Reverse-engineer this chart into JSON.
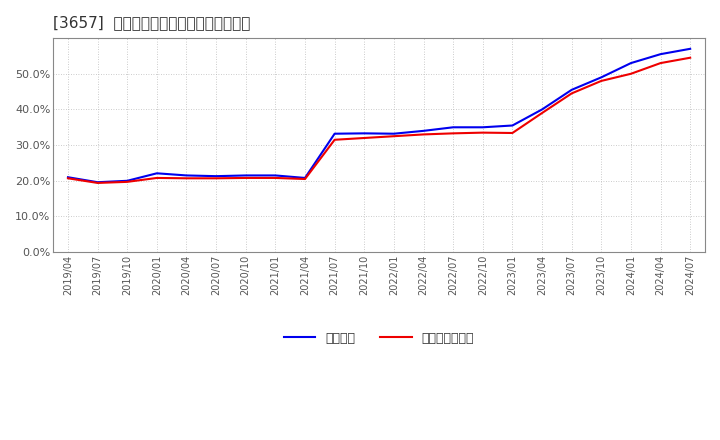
{
  "title": "[3657]  固定比率、固定長期適合率の推移",
  "line1_label": "固定比率",
  "line2_label": "固定長期適合率",
  "line1_color": "#0000ee",
  "line2_color": "#ee0000",
  "background_color": "#ffffff",
  "plot_bg_color": "#ffffff",
  "ylim": [
    0.0,
    0.6
  ],
  "yticks": [
    0.0,
    0.1,
    0.2,
    0.3,
    0.4,
    0.5
  ],
  "dates": [
    "2019/04",
    "2019/07",
    "2019/10",
    "2020/01",
    "2020/04",
    "2020/07",
    "2020/10",
    "2021/01",
    "2021/04",
    "2021/07",
    "2021/10",
    "2022/01",
    "2022/04",
    "2022/07",
    "2022/10",
    "2023/01",
    "2023/04",
    "2023/07",
    "2023/10",
    "2024/01",
    "2024/04",
    "2024/07"
  ],
  "line1_values": [
    0.21,
    0.196,
    0.2,
    0.221,
    0.215,
    0.213,
    0.215,
    0.215,
    0.208,
    0.332,
    0.333,
    0.332,
    0.34,
    0.35,
    0.35,
    0.355,
    0.4,
    0.455,
    0.49,
    0.53,
    0.555,
    0.57
  ],
  "line2_values": [
    0.207,
    0.194,
    0.197,
    0.208,
    0.207,
    0.207,
    0.208,
    0.208,
    0.205,
    0.315,
    0.32,
    0.325,
    0.33,
    0.333,
    0.335,
    0.334,
    0.39,
    0.445,
    0.48,
    0.5,
    0.53,
    0.545
  ]
}
